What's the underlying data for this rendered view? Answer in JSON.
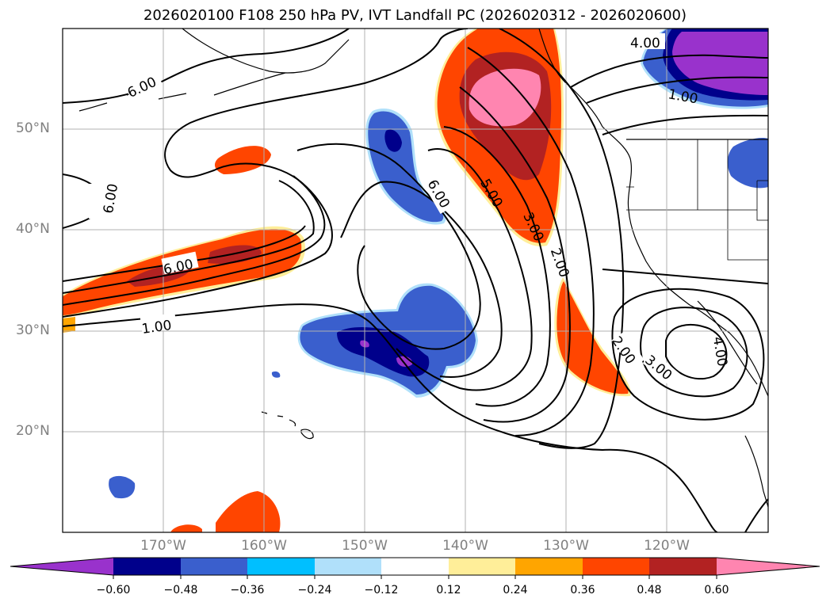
{
  "title": "2026020100 F108 250 hPa PV, IVT Landfall PC (2026020312 - 2026020600)",
  "map": {
    "lat_labels": [
      "50°N",
      "40°N",
      "30°N",
      "20°N"
    ],
    "lon_labels": [
      "170°W",
      "160°W",
      "150°W",
      "140°W",
      "130°W",
      "120°W"
    ],
    "contour_labels": [
      "6.00",
      "6.00",
      "6.00",
      "6.00",
      "5.00",
      "3.00",
      "2.00",
      "1.00",
      "4.00",
      "1.00",
      "2.00",
      "3.00",
      "4.00"
    ],
    "contour_color": "#000000",
    "positive_colors": [
      "#ffee99",
      "#ffa500",
      "#ff4500",
      "#b22222",
      "#ff85b0"
    ],
    "negative_colors": [
      "#b0e0fa",
      "#00bfff",
      "#3a5fcd",
      "#00008b",
      "#9932cc"
    ]
  },
  "colorbar": {
    "tick_labels": [
      "−0.60",
      "−0.48",
      "−0.36",
      "−0.24",
      "−0.12",
      "0.12",
      "0.24",
      "0.36",
      "0.48",
      "0.60"
    ],
    "bins": [
      {
        "color": "#9932cc"
      },
      {
        "color": "#00008b"
      },
      {
        "color": "#3a5fcd"
      },
      {
        "color": "#00bfff"
      },
      {
        "color": "#b0e0fa"
      },
      {
        "color": "#ffffff"
      },
      {
        "color": "#ffee99"
      },
      {
        "color": "#ffa500"
      },
      {
        "color": "#ff4500"
      },
      {
        "color": "#b22222"
      },
      {
        "color": "#ff85b0"
      }
    ]
  }
}
